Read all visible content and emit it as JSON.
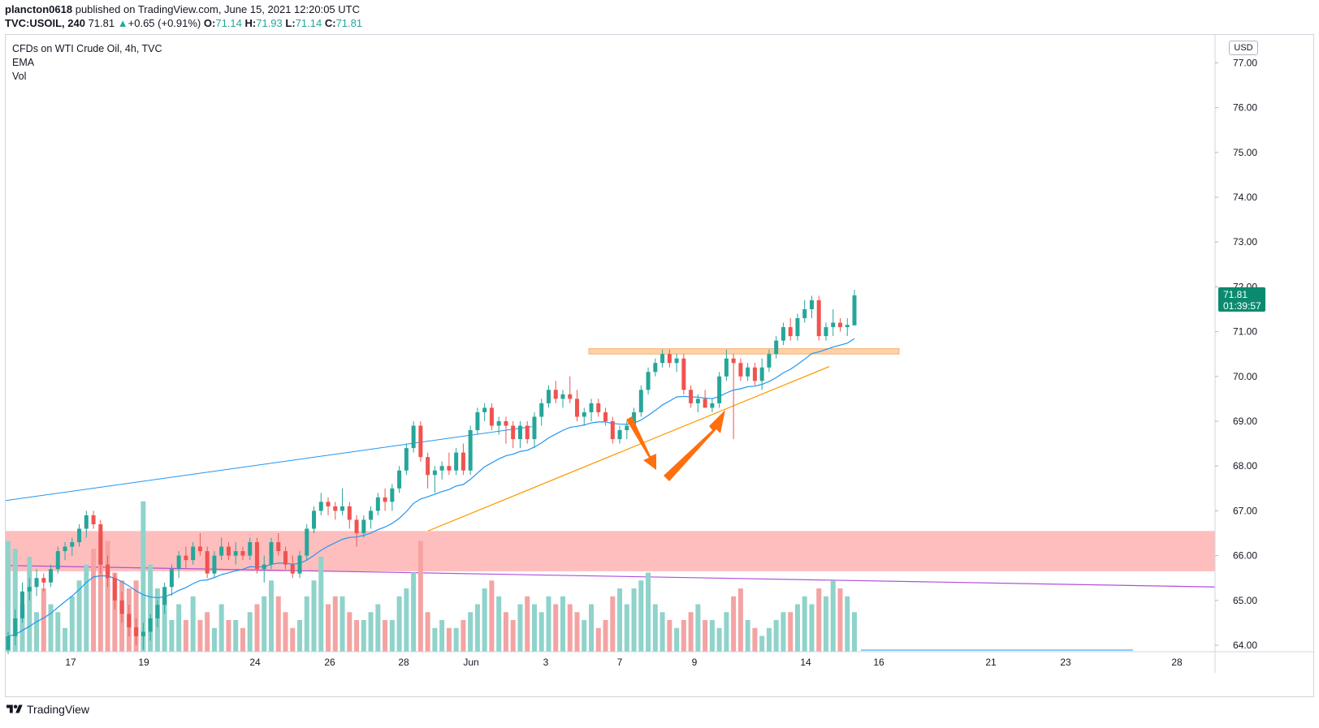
{
  "header": {
    "author": "plancton0618",
    "published": "published on TradingView.com, June 15, 2021 12:20:05 UTC",
    "symbol": "TVC:USOIL, 240",
    "last": "71.81",
    "change": "+0.65 (+0.91%)",
    "o_label": "O:",
    "o": "71.14",
    "h_label": "H:",
    "h": "71.93",
    "l_label": "L:",
    "l": "71.14",
    "c_label": "C:",
    "c": "71.81"
  },
  "legend": {
    "title": "CFDs on WTI Crude Oil, 4h, TVC",
    "ema": "EMA",
    "vol": "Vol"
  },
  "currency": "USD",
  "price_tag": {
    "price": "71.81",
    "countdown": "01:39:57"
  },
  "footer": {
    "brand": "TradingView"
  },
  "colors": {
    "up": "#26a69a",
    "down": "#ef5350",
    "vol_up": "#8fd3cb",
    "vol_down": "#f4a3a3",
    "ema": "#2196f3",
    "trend": "#ff9800",
    "zone": "#ffb3b3",
    "resistance": "#ffd1a6",
    "arrow": "#ff6f0f",
    "purple": "#b050d8"
  },
  "chart_data": {
    "type": "candlestick",
    "timeframe": "4h",
    "ylim": [
      63.9,
      77.6
    ],
    "y_ticks": [
      "77.00",
      "76.00",
      "75.00",
      "74.00",
      "73.00",
      "72.00",
      "71.00",
      "70.00",
      "69.00",
      "68.00",
      "67.00",
      "66.00",
      "65.00",
      "64.00"
    ],
    "x_ticks": [
      "17",
      "19",
      "24",
      "26",
      "28",
      "Jun",
      "3",
      "7",
      "9",
      "14",
      "16",
      "21",
      "23",
      "28"
    ],
    "series": [
      {
        "name": "CFDs on WTI Crude Oil, 4h, TVC",
        "ohlc": [
          [
            63.9,
            64.3,
            63.8,
            64.2
          ],
          [
            64.2,
            64.8,
            64.0,
            64.6
          ],
          [
            64.6,
            65.4,
            64.5,
            65.2
          ],
          [
            65.2,
            65.5,
            65.0,
            65.3
          ],
          [
            65.3,
            65.7,
            65.1,
            65.5
          ],
          [
            65.5,
            65.6,
            65.2,
            65.4
          ],
          [
            65.4,
            65.8,
            65.3,
            65.7
          ],
          [
            65.7,
            66.2,
            65.6,
            66.1
          ],
          [
            66.1,
            66.3,
            65.9,
            66.2
          ],
          [
            66.2,
            66.4,
            66.0,
            66.3
          ],
          [
            66.3,
            66.7,
            66.2,
            66.6
          ],
          [
            66.6,
            67.0,
            66.4,
            66.9
          ],
          [
            66.9,
            67.0,
            66.6,
            66.7
          ],
          [
            66.7,
            66.8,
            65.6,
            65.8
          ],
          [
            65.8,
            66.0,
            65.3,
            65.5
          ],
          [
            65.5,
            65.6,
            64.8,
            65.0
          ],
          [
            65.0,
            65.2,
            64.5,
            64.7
          ],
          [
            64.7,
            64.9,
            64.2,
            64.4
          ],
          [
            64.4,
            64.6,
            64.0,
            64.2
          ],
          [
            64.2,
            64.5,
            63.9,
            64.3
          ],
          [
            64.3,
            64.7,
            64.1,
            64.6
          ],
          [
            64.6,
            65.0,
            64.4,
            64.9
          ],
          [
            64.9,
            65.4,
            64.7,
            65.3
          ],
          [
            65.3,
            65.8,
            65.1,
            65.7
          ],
          [
            65.7,
            66.1,
            65.5,
            66.0
          ],
          [
            66.0,
            66.2,
            65.7,
            65.9
          ],
          [
            65.9,
            66.3,
            65.8,
            66.2
          ],
          [
            66.2,
            66.5,
            66.0,
            66.1
          ],
          [
            66.1,
            66.2,
            65.5,
            65.6
          ],
          [
            65.6,
            66.1,
            65.5,
            66.0
          ],
          [
            66.0,
            66.4,
            65.9,
            66.2
          ],
          [
            66.2,
            66.3,
            65.9,
            66.0
          ],
          [
            66.0,
            66.3,
            65.8,
            66.1
          ],
          [
            66.1,
            66.2,
            65.9,
            66.0
          ],
          [
            66.0,
            66.4,
            65.9,
            66.3
          ],
          [
            66.3,
            66.4,
            65.6,
            65.7
          ],
          [
            65.7,
            66.0,
            65.4,
            65.8
          ],
          [
            65.8,
            66.4,
            65.7,
            66.3
          ],
          [
            66.3,
            66.5,
            66.0,
            66.1
          ],
          [
            66.1,
            66.2,
            65.7,
            65.8
          ],
          [
            65.8,
            66.0,
            65.5,
            65.6
          ],
          [
            65.6,
            66.1,
            65.5,
            66.0
          ],
          [
            66.0,
            66.7,
            65.9,
            66.6
          ],
          [
            66.6,
            67.1,
            66.5,
            67.0
          ],
          [
            67.0,
            67.4,
            66.9,
            67.2
          ],
          [
            67.2,
            67.3,
            66.9,
            67.1
          ],
          [
            67.1,
            67.2,
            66.8,
            67.0
          ],
          [
            67.0,
            67.5,
            66.9,
            67.1
          ],
          [
            67.1,
            67.2,
            66.6,
            66.8
          ],
          [
            66.8,
            66.9,
            66.2,
            66.5
          ],
          [
            66.5,
            66.9,
            66.4,
            66.8
          ],
          [
            66.8,
            67.1,
            66.6,
            67.0
          ],
          [
            67.0,
            67.4,
            66.9,
            67.3
          ],
          [
            67.3,
            67.5,
            67.0,
            67.2
          ],
          [
            67.2,
            67.6,
            67.0,
            67.5
          ],
          [
            67.5,
            68.0,
            67.4,
            67.9
          ],
          [
            67.9,
            68.5,
            67.8,
            68.4
          ],
          [
            68.4,
            69.0,
            68.3,
            68.9
          ],
          [
            68.9,
            69.0,
            68.1,
            68.2
          ],
          [
            68.2,
            68.3,
            67.5,
            67.8
          ],
          [
            67.8,
            68.0,
            67.4,
            67.9
          ],
          [
            67.9,
            68.1,
            67.7,
            68.0
          ],
          [
            68.0,
            68.3,
            67.8,
            67.9
          ],
          [
            67.9,
            68.4,
            67.8,
            68.3
          ],
          [
            68.3,
            68.5,
            67.8,
            67.9
          ],
          [
            67.9,
            68.9,
            67.8,
            68.8
          ],
          [
            68.8,
            69.3,
            68.7,
            69.2
          ],
          [
            69.2,
            69.4,
            69.0,
            69.3
          ],
          [
            69.3,
            69.4,
            68.8,
            68.9
          ],
          [
            68.9,
            69.1,
            68.7,
            69.0
          ],
          [
            69.0,
            69.1,
            68.5,
            68.9
          ],
          [
            68.9,
            69.0,
            68.4,
            68.6
          ],
          [
            68.6,
            69.0,
            68.4,
            68.9
          ],
          [
            68.9,
            69.0,
            68.5,
            68.6
          ],
          [
            68.6,
            69.2,
            68.4,
            69.1
          ],
          [
            69.1,
            69.5,
            68.9,
            69.4
          ],
          [
            69.4,
            69.8,
            69.3,
            69.7
          ],
          [
            69.7,
            69.9,
            69.4,
            69.5
          ],
          [
            69.5,
            69.7,
            69.3,
            69.6
          ],
          [
            69.6,
            70.0,
            69.4,
            69.5
          ],
          [
            69.5,
            69.7,
            69.0,
            69.1
          ],
          [
            69.1,
            69.3,
            68.9,
            69.2
          ],
          [
            69.2,
            69.5,
            69.0,
            69.4
          ],
          [
            69.4,
            69.5,
            69.1,
            69.2
          ],
          [
            69.2,
            69.3,
            68.9,
            69.0
          ],
          [
            69.0,
            69.1,
            68.5,
            68.6
          ],
          [
            68.6,
            68.9,
            68.5,
            68.8
          ],
          [
            68.8,
            69.0,
            68.6,
            68.9
          ],
          [
            68.9,
            69.3,
            68.8,
            69.2
          ],
          [
            69.2,
            69.8,
            69.1,
            69.7
          ],
          [
            69.7,
            70.2,
            69.6,
            70.1
          ],
          [
            70.1,
            70.4,
            70.0,
            70.3
          ],
          [
            70.3,
            70.6,
            70.2,
            70.5
          ],
          [
            70.5,
            70.6,
            70.2,
            70.3
          ],
          [
            70.3,
            70.5,
            70.1,
            70.4
          ],
          [
            70.4,
            70.5,
            69.6,
            69.7
          ],
          [
            69.7,
            69.8,
            69.3,
            69.4
          ],
          [
            69.4,
            69.6,
            69.2,
            69.5
          ],
          [
            69.5,
            69.7,
            69.3,
            69.3
          ],
          [
            69.3,
            69.5,
            69.2,
            69.4
          ],
          [
            69.4,
            70.1,
            69.3,
            70.0
          ],
          [
            70.0,
            70.6,
            69.9,
            70.4
          ],
          [
            70.4,
            70.5,
            68.6,
            70.3
          ],
          [
            70.3,
            70.4,
            69.9,
            70.0
          ],
          [
            70.0,
            70.3,
            69.9,
            70.2
          ],
          [
            70.2,
            70.3,
            69.8,
            69.9
          ],
          [
            69.9,
            70.4,
            69.7,
            70.2
          ],
          [
            70.2,
            70.6,
            70.1,
            70.5
          ],
          [
            70.5,
            70.9,
            70.4,
            70.8
          ],
          [
            70.8,
            71.2,
            70.7,
            71.1
          ],
          [
            71.1,
            71.3,
            70.8,
            70.9
          ],
          [
            70.9,
            71.4,
            70.8,
            71.3
          ],
          [
            71.3,
            71.7,
            71.2,
            71.5
          ],
          [
            71.5,
            71.8,
            71.3,
            71.7
          ],
          [
            71.7,
            71.8,
            70.8,
            70.9
          ],
          [
            70.9,
            71.2,
            70.8,
            71.1
          ],
          [
            71.1,
            71.5,
            70.9,
            71.2
          ],
          [
            71.2,
            71.3,
            71.0,
            71.1
          ],
          [
            71.1,
            71.3,
            70.9,
            71.15
          ],
          [
            71.14,
            71.93,
            71.14,
            71.81
          ]
        ]
      }
    ]
  }
}
